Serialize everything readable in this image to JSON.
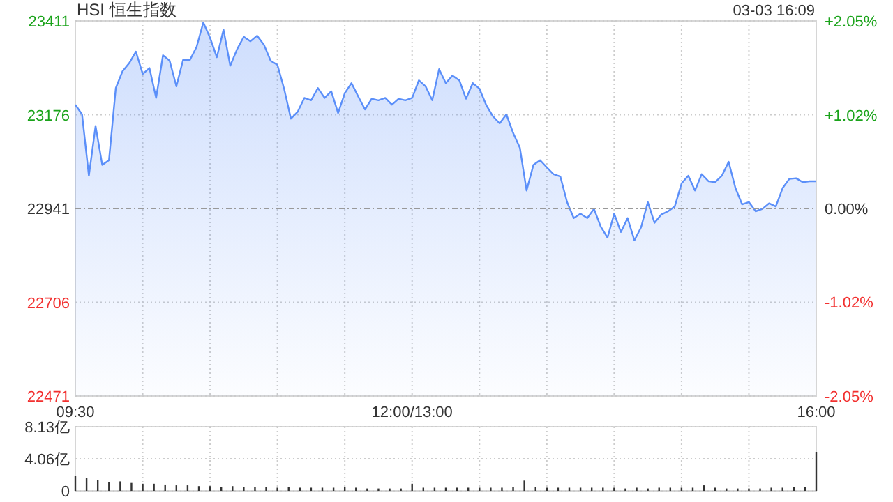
{
  "chart_data": [
    {
      "type": "area",
      "title": "HSI 恒生指数",
      "subtitle": "03-03 16:09",
      "color": "#5b8ff9",
      "categories": [
        "09:30",
        null,
        null,
        null,
        null,
        null,
        null,
        null,
        null,
        null,
        null,
        null,
        null,
        null,
        null,
        null,
        null,
        null,
        null,
        null,
        null,
        null,
        null,
        null,
        null,
        null,
        null,
        null,
        null,
        null,
        null,
        null,
        null,
        null,
        null,
        null,
        null,
        null,
        null,
        null,
        null,
        null,
        null,
        null,
        null,
        null,
        null,
        null,
        null,
        null,
        "12:00/13:00",
        null,
        null,
        null,
        null,
        null,
        null,
        null,
        null,
        null,
        null,
        null,
        null,
        null,
        null,
        null,
        null,
        null,
        null,
        null,
        null,
        null,
        null,
        null,
        null,
        null,
        null,
        null,
        null,
        null,
        null,
        null,
        null,
        null,
        null,
        null,
        null,
        null,
        null,
        null,
        null,
        null,
        null,
        null,
        null,
        null,
        null,
        null,
        null,
        null,
        null,
        null,
        null,
        null,
        null,
        null,
        null,
        null,
        null,
        null,
        "16:00"
      ],
      "values": [
        23201,
        23177,
        23023,
        23148,
        23050,
        23062,
        23243,
        23285,
        23305,
        23334,
        23278,
        23293,
        23218,
        23325,
        23311,
        23247,
        23313,
        23313,
        23346,
        23407,
        23369,
        23320,
        23389,
        23299,
        23340,
        23371,
        23360,
        23374,
        23351,
        23311,
        23301,
        23241,
        23166,
        23183,
        23218,
        23212,
        23243,
        23218,
        23235,
        23180,
        23230,
        23255,
        23222,
        23189,
        23216,
        23212,
        23218,
        23201,
        23216,
        23212,
        23218,
        23262,
        23247,
        23212,
        23290,
        23255,
        23274,
        23262,
        23216,
        23255,
        23241,
        23200,
        23172,
        23154,
        23177,
        23130,
        23093,
        22986,
        23050,
        23062,
        23044,
        23027,
        23021,
        22957,
        22917,
        22928,
        22917,
        22940,
        22896,
        22868,
        22928,
        22882,
        22917,
        22861,
        22894,
        22957,
        22905,
        22926,
        22934,
        22946,
        23004,
        23023,
        22986,
        23027,
        23009,
        23007,
        23023,
        23058,
        22992,
        22951,
        22957,
        22934,
        22940,
        22954,
        22946,
        22992,
        23015,
        23017,
        23007,
        23009,
        23009
      ],
      "ylim": [
        22471,
        23411
      ],
      "yticks": [
        22471,
        22706,
        22941,
        23176,
        23411
      ],
      "y2lim": [
        -2.05,
        2.05
      ],
      "y2ticks": [
        {
          "value": -2.05,
          "label": "-2.05%"
        },
        {
          "value": -1.02,
          "label": "-1.02%"
        },
        {
          "value": 0,
          "label": "0.00%"
        },
        {
          "value": 1.02,
          "label": "+1.02%"
        },
        {
          "value": 2.05,
          "label": "+2.05%"
        }
      ],
      "grid": true,
      "ref_lines": [
        {
          "axis": "y",
          "value": 22941,
          "line_style": "dashed"
        }
      ]
    },
    {
      "type": "bar",
      "color": "#333333",
      "tick_labels": "y",
      "grid": true,
      "categories": [
        null,
        null,
        null,
        null,
        null,
        null,
        null,
        null,
        null,
        null,
        null,
        null,
        null,
        null,
        null,
        null,
        null,
        null,
        null,
        null,
        null,
        null,
        null,
        null,
        null,
        null,
        null,
        null,
        null,
        null,
        null,
        null,
        null,
        null,
        null,
        null,
        null,
        null,
        null,
        null,
        null,
        null,
        null,
        null,
        null,
        null,
        null,
        null,
        null,
        null,
        null,
        null,
        null,
        null,
        null,
        null,
        null,
        null,
        null,
        null,
        null,
        null,
        null,
        null,
        null,
        null,
        null
      ],
      "values": [
        1.9,
        1.6,
        1.4,
        1.1,
        1.2,
        1.0,
        0.9,
        0.9,
        0.8,
        0.7,
        0.7,
        0.6,
        0.6,
        0.5,
        0.6,
        0.5,
        0.5,
        0.5,
        0.4,
        0.5,
        0.4,
        0.4,
        0.4,
        0.4,
        0.5,
        0.4,
        0.3,
        0.3,
        0.3,
        0.3,
        0.9,
        0.4,
        0.4,
        0.4,
        0.4,
        0.4,
        0.4,
        0.4,
        0.4,
        0.5,
        1.3,
        0.5,
        0.4,
        0.4,
        0.4,
        0.4,
        0.4,
        0.4,
        0.4,
        0.3,
        0.4,
        0.3,
        0.4,
        0.4,
        0.4,
        0.4,
        0.7,
        0.4,
        0.3,
        0.3,
        0.3,
        0.3,
        0.4,
        0.4,
        0.5,
        0.5,
        4.9
      ],
      "ylim": [
        0,
        8.13
      ],
      "yticks": [
        0,
        {
          "value": 4.06,
          "label": "4.06亿"
        },
        {
          "value": 8.13,
          "label": "8.13亿"
        }
      ]
    }
  ]
}
